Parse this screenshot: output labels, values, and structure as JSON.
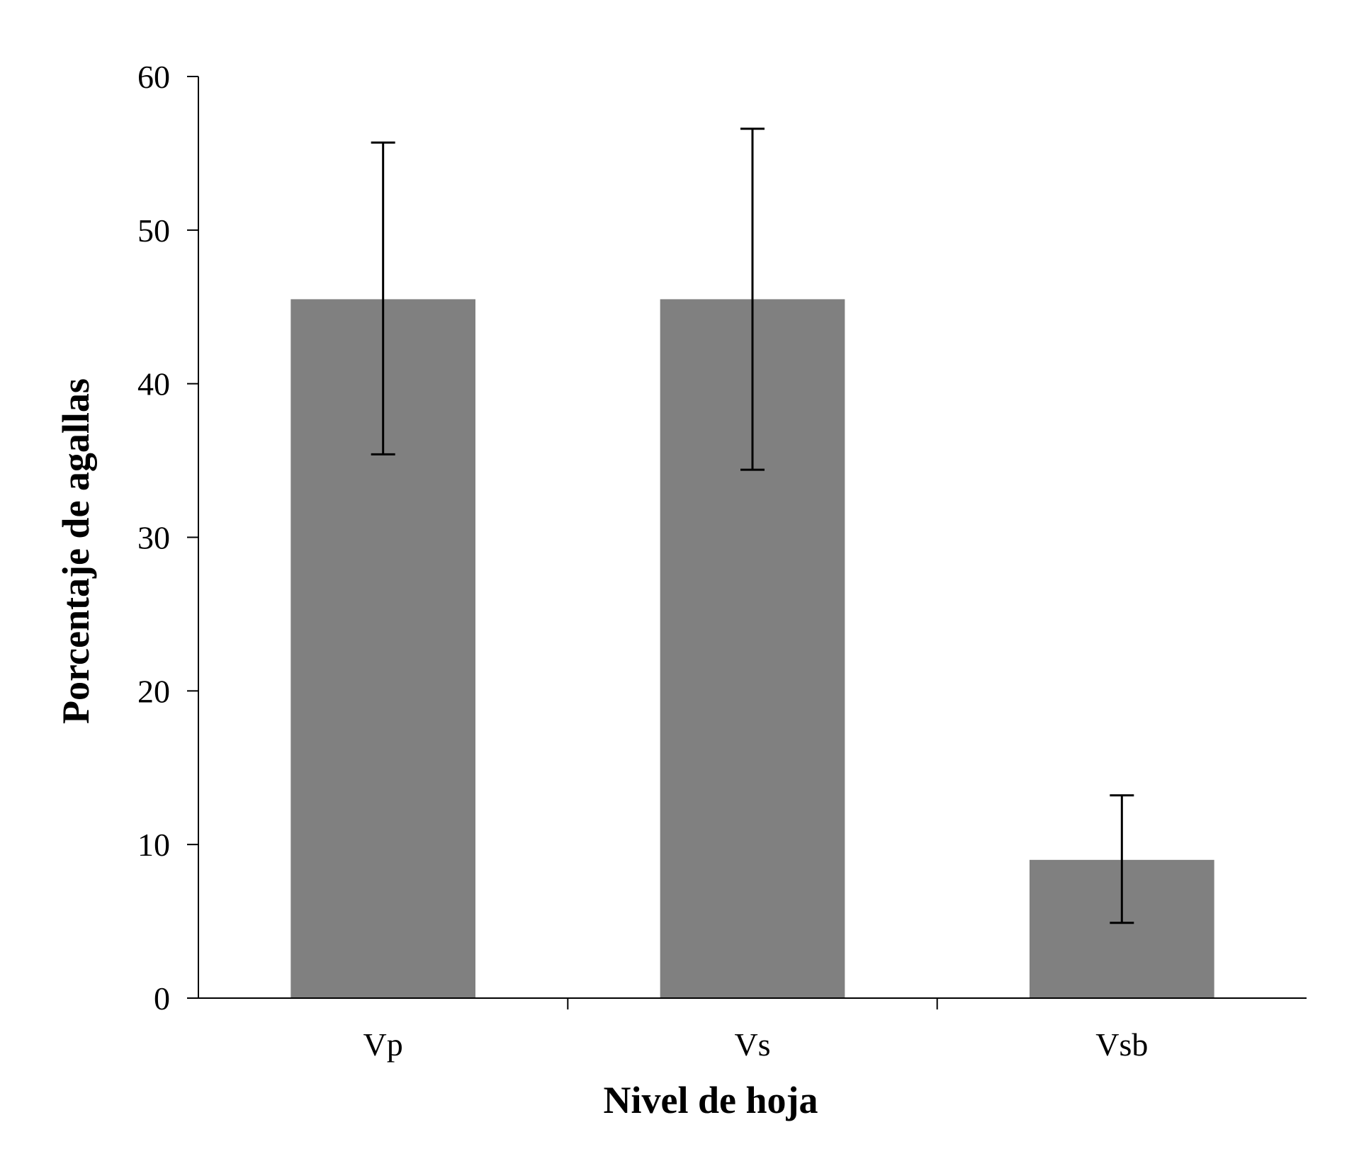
{
  "chart_data": {
    "type": "bar",
    "title": "",
    "xlabel": "Nivel de hoja",
    "ylabel": "Porcentaje de agallas",
    "categories": [
      "Vp",
      "Vs",
      "Vsb"
    ],
    "values": [
      45.5,
      45.5,
      9.0
    ],
    "error_low": [
      35.4,
      34.4,
      4.9
    ],
    "error_high": [
      55.7,
      56.6,
      13.2
    ],
    "ylim": [
      0,
      60
    ],
    "yticks": [
      "0",
      "10",
      "20",
      "30",
      "40",
      "50",
      "60"
    ],
    "grid": false,
    "legend": "none",
    "bar_color": "#808080",
    "error_color": "#000000"
  }
}
